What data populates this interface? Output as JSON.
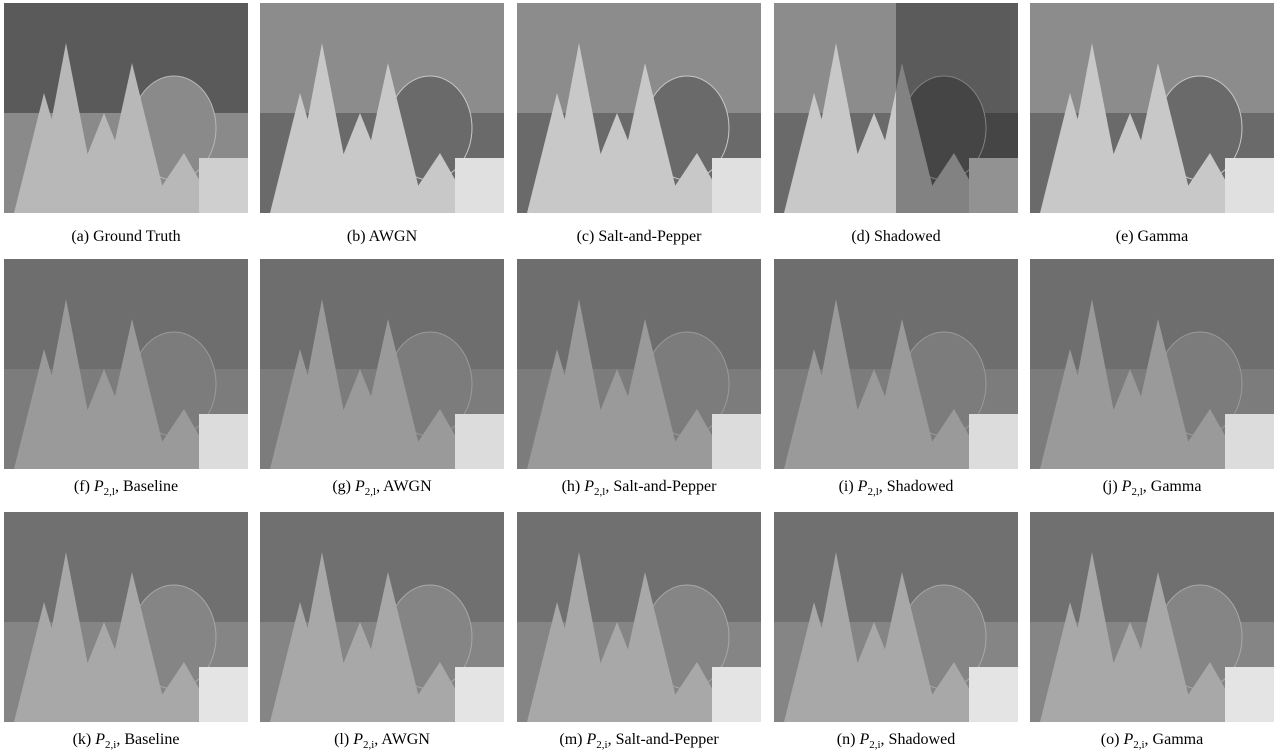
{
  "figure": {
    "rows": [
      [
        {
          "label": "(a)",
          "text": "Ground Truth"
        },
        {
          "label": "(b)",
          "text": "AWGN"
        },
        {
          "label": "(c)",
          "text": "Salt-and-Pepper"
        },
        {
          "label": "(d)",
          "text": "Shadowed"
        },
        {
          "label": "(e)",
          "text": "Gamma"
        }
      ],
      [
        {
          "label": "(f)",
          "symbol": "P",
          "subscript": "2,l",
          "text": ", Baseline"
        },
        {
          "label": "(g)",
          "symbol": "P",
          "subscript": "2,l",
          "text": ", AWGN"
        },
        {
          "label": "(h)",
          "symbol": "P",
          "subscript": "2,l",
          "text": ", Salt-and-Pepper"
        },
        {
          "label": "(i)",
          "symbol": "P",
          "subscript": "2,l",
          "text": ", Shadowed"
        },
        {
          "label": "(j)",
          "symbol": "P",
          "subscript": "2,l",
          "text": ", Gamma"
        }
      ],
      [
        {
          "label": "(k)",
          "symbol": "P",
          "subscript": "2,i",
          "text": ", Baseline"
        },
        {
          "label": "(l)",
          "symbol": "P",
          "subscript": "2,i",
          "text": ", AWGN"
        },
        {
          "label": "(m)",
          "symbol": "P",
          "subscript": "2,i",
          "text": ", Salt-and-Pepper"
        },
        {
          "label": "(n)",
          "symbol": "P",
          "subscript": "2,i",
          "text": ", Shadowed"
        },
        {
          "label": "(o)",
          "symbol": "P",
          "subscript": "2,i",
          "text": ", Gamma"
        }
      ]
    ]
  }
}
